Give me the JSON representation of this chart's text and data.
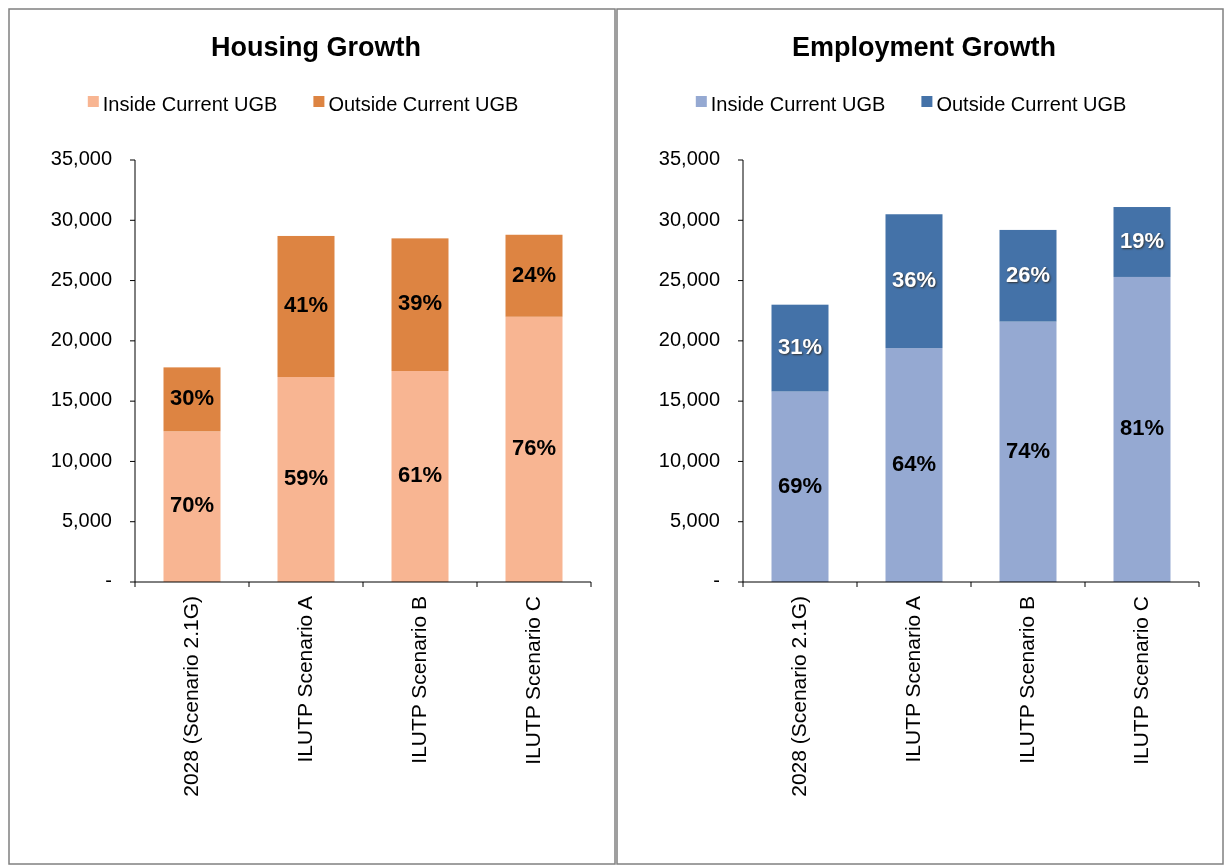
{
  "chart_data": [
    {
      "type": "bar",
      "title": "Housing Growth",
      "stacked": true,
      "legend": "top",
      "grid": false,
      "categories": [
        "2028 (Scenario 2.1G)",
        "ILUTP Scenario A",
        "ILUTP Scenario B",
        "ILUTP Scenario C"
      ],
      "series": [
        {
          "name": "Inside Current UGB",
          "color": "#f8b592",
          "values": [
            12500,
            17000,
            17500,
            22000
          ]
        },
        {
          "name": "Outside Current UGB",
          "color": "#dd8442",
          "values": [
            5300,
            11700,
            11000,
            6800
          ]
        }
      ],
      "annotations": [
        "70%",
        "59%",
        "61%",
        "76%",
        "30%",
        "41%",
        "39%",
        "24%"
      ],
      "ylim": [
        0,
        35000
      ],
      "yticks": [
        {
          "value": 0,
          "label": "-"
        },
        {
          "value": 5000,
          "label": "5,000"
        },
        {
          "value": 10000,
          "label": "10,000"
        },
        {
          "value": 15000,
          "label": "15,000"
        },
        {
          "value": 20000,
          "label": "20,000"
        },
        {
          "value": 25000,
          "label": "25,000"
        },
        {
          "value": 30000,
          "label": "30,000"
        },
        {
          "value": 35000,
          "label": "35,000"
        }
      ]
    },
    {
      "type": "bar",
      "title": "Employment Growth",
      "stacked": true,
      "legend": "top",
      "grid": false,
      "categories": [
        "2028 (Scenario 2.1G)",
        "ILUTP Scenario A",
        "ILUTP Scenario B",
        "ILUTP Scenario C"
      ],
      "series": [
        {
          "name": "Inside Current UGB",
          "color": "#95a9d2",
          "values": [
            15800,
            19400,
            21600,
            25300
          ]
        },
        {
          "name": "Outside Current UGB",
          "color": "#4472a8",
          "values": [
            7200,
            11100,
            7600,
            5800
          ]
        }
      ],
      "annotations": [
        "69%",
        "64%",
        "74%",
        "81%",
        "31%",
        "36%",
        "26%",
        "19%"
      ],
      "ylim": [
        0,
        35000
      ],
      "yticks": [
        {
          "value": 0,
          "label": "-"
        },
        {
          "value": 5000,
          "label": "5,000"
        },
        {
          "value": 10000,
          "label": "10,000"
        },
        {
          "value": 15000,
          "label": "15,000"
        },
        {
          "value": 20000,
          "label": "20,000"
        },
        {
          "value": 25000,
          "label": "25,000"
        },
        {
          "value": 30000,
          "label": "30,000"
        },
        {
          "value": 35000,
          "label": "35,000"
        }
      ]
    }
  ]
}
